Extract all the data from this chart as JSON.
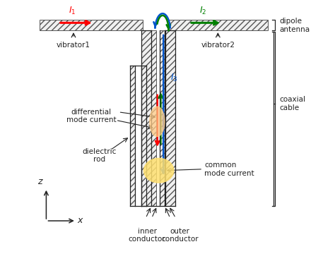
{
  "bg_color": "#ffffff",
  "red": "#ff0000",
  "green": "#008000",
  "blue": "#0055cc",
  "yellow_glow": "#ffe070",
  "orange_glow": "#ffcc88",
  "ec": "#555555",
  "fc_hatch": "#f0f0f0",
  "lc": "#222222",
  "labels": {
    "I1": "$I_1$",
    "I2": "$I_2$",
    "I3": "$I_3$",
    "vibrator1": "vibrator1",
    "vibrator2": "vibrator2",
    "dipole_antenna": "dipole\nantenna",
    "coaxial_cable": "coaxial\ncable",
    "differential_mode": "differential\nmode current",
    "common_mode": "common\nmode current",
    "dielectric_rod": "dielectric\nrod",
    "inner_conductor": "inner\nconductor",
    "outer_conductor": "outer\nconductor",
    "z_label": "$z$",
    "x_label": "$x$"
  }
}
